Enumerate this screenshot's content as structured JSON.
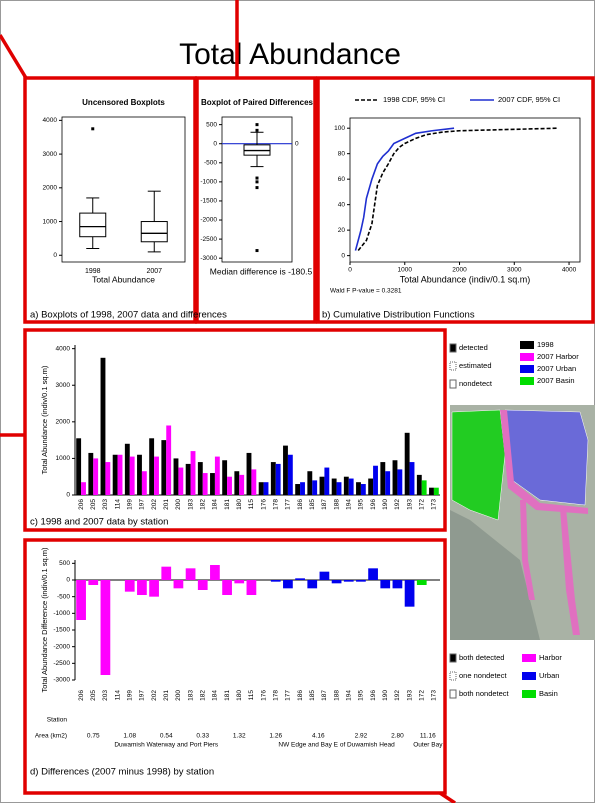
{
  "title": "Total Abundance",
  "captions": [
    "a) Boxplots of 1998, 2007 data and differences",
    "b) Cumulative Distribution Functions",
    "c) 1998 and 2007 data by station",
    "d) Differences (2007 minus 1998) by station"
  ],
  "chart_data": [
    {
      "type": "box",
      "title": "Uncensored Boxplots",
      "xlabel": "Total Abundance",
      "categories": [
        "1998",
        "2007"
      ],
      "boxes": [
        {
          "whisker_low": 200,
          "q1": 550,
          "median": 850,
          "q3": 1250,
          "whisker_high": 1700,
          "outliers": [
            3750
          ]
        },
        {
          "whisker_low": 100,
          "q1": 400,
          "median": 650,
          "q3": 1000,
          "whisker_high": 1900,
          "outliers": []
        }
      ],
      "ylim": [
        -200,
        4100
      ],
      "yticks": [
        0,
        1000,
        2000,
        3000,
        4000
      ]
    },
    {
      "type": "box",
      "title": "Boxplot of Paired Differences",
      "annotation": "Median difference is -180.5",
      "reference_line": 0,
      "boxes": [
        {
          "whisker_low": -600,
          "q1": -300,
          "median": -180,
          "q3": -30,
          "whisker_high": 300,
          "outliers": [
            500,
            350,
            -900,
            -1000,
            -1150,
            -2800
          ]
        }
      ],
      "ylim": [
        -3100,
        700
      ],
      "yticks": [
        500,
        0,
        -500,
        -1000,
        -1500,
        -2000,
        -2500,
        -3000
      ]
    },
    {
      "type": "line",
      "xlabel": "Total Abundance (indiv/0.1 sq.m)",
      "annotation": "Wald F P-value = 0.3281",
      "series": [
        {
          "name": "1998 CDF, 95% CI",
          "color": "#000000",
          "dashed": true,
          "x": [
            150,
            300,
            400,
            450,
            500,
            600,
            700,
            800,
            900,
            1000,
            1200,
            1400,
            1700,
            2000,
            3800
          ],
          "values": [
            4,
            12,
            25,
            40,
            55,
            65,
            72,
            80,
            85,
            88,
            92,
            95,
            97,
            98,
            100
          ]
        },
        {
          "name": "2007 CDF, 95% CI",
          "color": "#1f2fd0",
          "dashed": false,
          "x": [
            100,
            200,
            250,
            300,
            400,
            500,
            600,
            700,
            800,
            1000,
            1200,
            1500,
            1900
          ],
          "values": [
            4,
            20,
            30,
            45,
            60,
            72,
            78,
            82,
            88,
            92,
            96,
            98,
            100
          ]
        }
      ],
      "xlim": [
        0,
        4200
      ],
      "xticks": [
        0,
        1000,
        2000,
        3000,
        4000
      ],
      "ylim": [
        -5,
        108
      ],
      "yticks": [
        0,
        20,
        40,
        60,
        80,
        100
      ]
    },
    {
      "type": "bar",
      "ylabel": "Total Abundance (indiv/0.1 sq.m)",
      "categories": [
        "206",
        "205",
        "203",
        "114",
        "199",
        "197",
        "202",
        "201",
        "200",
        "183",
        "182",
        "184",
        "181",
        "180",
        "115",
        "176",
        "178",
        "177",
        "186",
        "185",
        "187",
        "188",
        "194",
        "195",
        "196",
        "190",
        "192",
        "193",
        "172",
        "173"
      ],
      "series": [
        {
          "color": "#000000",
          "values": [
            1550,
            1150,
            3750,
            1100,
            1400,
            1100,
            1550,
            1500,
            1000,
            850,
            900,
            600,
            950,
            650,
            1150,
            350,
            900,
            1350,
            300,
            650,
            500,
            450,
            500,
            350,
            450,
            900,
            950,
            1700,
            550,
            200
          ]
        },
        {
          "colors": [
            "#ff00ff",
            "#ff00ff",
            "#ff00ff",
            "#ff00ff",
            "#ff00ff",
            "#ff00ff",
            "#ff00ff",
            "#ff00ff",
            "#ff00ff",
            "#ff00ff",
            "#ff00ff",
            "#ff00ff",
            "#ff00ff",
            "#ff00ff",
            "#ff00ff",
            "#0000ee",
            "#0000ee",
            "#0000ee",
            "#0000ee",
            "#0000ee",
            "#0000ee",
            "#0000ee",
            "#0000ee",
            "#0000ee",
            "#0000ee",
            "#0000ee",
            "#0000ee",
            "#0000ee",
            "#00dd00",
            "#00dd00"
          ],
          "values": [
            350,
            1000,
            900,
            1100,
            1050,
            650,
            1050,
            1900,
            750,
            1200,
            600,
            1050,
            500,
            550,
            700,
            350,
            850,
            1100,
            350,
            400,
            750,
            350,
            450,
            300,
            800,
            650,
            700,
            900,
            400,
            200
          ]
        }
      ],
      "ylim": [
        0,
        4100
      ],
      "yticks": [
        0,
        1000,
        2000,
        3000,
        4000
      ]
    },
    {
      "type": "bar",
      "ylabel": "Total Abundance Difference (indiv/0.1 sq.m)",
      "station_label": "Station",
      "area_label": "Area (km2)",
      "categories": [
        "206",
        "205",
        "203",
        "114",
        "199",
        "197",
        "202",
        "201",
        "200",
        "183",
        "182",
        "184",
        "181",
        "180",
        "115",
        "176",
        "178",
        "177",
        "186",
        "185",
        "187",
        "188",
        "194",
        "195",
        "196",
        "190",
        "192",
        "193",
        "172",
        "173"
      ],
      "values": [
        -1200,
        -150,
        -2850,
        0,
        -350,
        -450,
        -500,
        400,
        -250,
        350,
        -300,
        450,
        -450,
        -100,
        -450,
        0,
        -50,
        -250,
        50,
        -250,
        250,
        -100,
        -50,
        -50,
        350,
        -250,
        -250,
        -800,
        -150,
        0
      ],
      "colors": [
        "#ff00ff",
        "#ff00ff",
        "#ff00ff",
        "#ff00ff",
        "#ff00ff",
        "#ff00ff",
        "#ff00ff",
        "#ff00ff",
        "#ff00ff",
        "#ff00ff",
        "#ff00ff",
        "#ff00ff",
        "#ff00ff",
        "#ff00ff",
        "#ff00ff",
        "#0000ee",
        "#0000ee",
        "#0000ee",
        "#0000ee",
        "#0000ee",
        "#0000ee",
        "#0000ee",
        "#0000ee",
        "#0000ee",
        "#0000ee",
        "#0000ee",
        "#0000ee",
        "#0000ee",
        "#00dd00",
        "#00dd00"
      ],
      "areas": [
        "0.75",
        "1.08",
        "0.54",
        "0.33",
        "1.32",
        "1.26",
        "4.16",
        "2.92",
        "2.80",
        "11.16"
      ],
      "regions": [
        "Duwamish Waterway and Port Piers",
        "NW Edge and Bay E of Duwamish Head",
        "Outer Bay"
      ],
      "ylim": [
        -3000,
        600
      ],
      "yticks": [
        500,
        0,
        -500,
        -1000,
        -1500,
        -2000,
        -2500,
        -3000
      ]
    }
  ],
  "status_legend": [
    "detected",
    "estimated",
    "nondetect"
  ],
  "year_legend": [
    {
      "label": "1998",
      "color": "#000000"
    },
    {
      "label": "2007 Harbor",
      "color": "#ff00ff"
    },
    {
      "label": "2007 Urban",
      "color": "#0000ee"
    },
    {
      "label": "2007 Basin",
      "color": "#00dd00"
    }
  ],
  "pair_legend": [
    "both detected",
    "one nondetect",
    "both nondetect"
  ],
  "region_legend": [
    {
      "label": "Harbor",
      "color": "#ff00ff"
    },
    {
      "label": "Urban",
      "color": "#0000ee"
    },
    {
      "label": "Basin",
      "color": "#00dd00"
    }
  ]
}
